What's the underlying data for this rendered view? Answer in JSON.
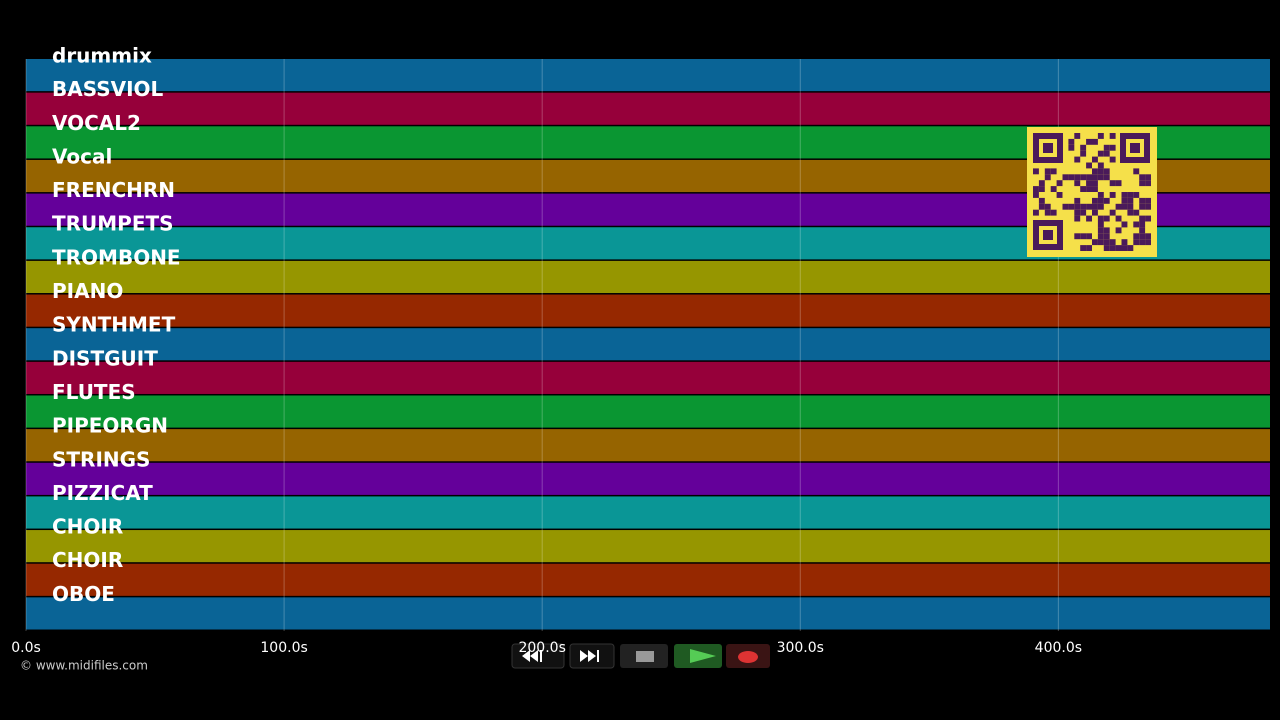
{
  "timeline": {
    "tracks": [
      "drummix",
      "BASSVIOL",
      "VOCAL2",
      "Vocal",
      "FRENCHRN",
      "TRUMPETS",
      "TROMBONE",
      "PIANO",
      "SYNTHMET",
      "DISTGUIT",
      "FLUTES",
      "PIPEORGN",
      "STRINGS",
      "PIZZICAT",
      "CHOIR",
      "CHOIR",
      "OBOE"
    ],
    "colors": [
      "#0a6496",
      "#96003a",
      "#0a9632",
      "#966400",
      "#64009a",
      "#0a9696",
      "#969600",
      "#962800"
    ],
    "xlim": [
      0,
      482
    ],
    "xticks": [
      {
        "value": 0,
        "label": "0.0s"
      },
      {
        "value": 100,
        "label": "100.0s"
      },
      {
        "value": 200,
        "label": "200.0s"
      },
      {
        "value": 300,
        "label": "300.0s"
      },
      {
        "value": 400,
        "label": "400.0s"
      }
    ],
    "grid": true
  },
  "footer": {
    "copyright": "© www.midifiles.com"
  }
}
